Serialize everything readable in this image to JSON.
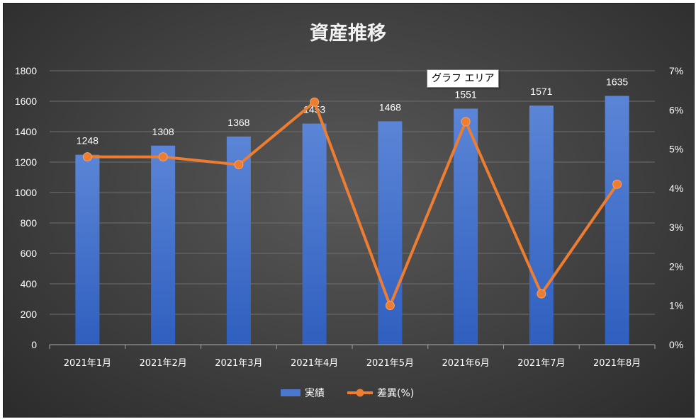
{
  "chart_data": {
    "type": "bar+line",
    "title": "資産推移",
    "categories": [
      "2021年1月",
      "2021年2月",
      "2021年3月",
      "2021年4月",
      "2021年5月",
      "2021年6月",
      "2021年7月",
      "2021年8月"
    ],
    "series": [
      {
        "name": "実績",
        "type": "bar",
        "axis": "left",
        "values": [
          1248,
          1308,
          1368,
          1453,
          1468,
          1551,
          1571,
          1635
        ],
        "color": "#4472c4"
      },
      {
        "name": "差異(%)",
        "type": "line",
        "axis": "right",
        "values": [
          4.8,
          4.8,
          4.6,
          6.2,
          1.0,
          5.7,
          1.3,
          4.1
        ],
        "color": "#ed7d31"
      }
    ],
    "y_left": {
      "min": 0,
      "max": 1800,
      "step": 200,
      "ticks": [
        "0",
        "200",
        "400",
        "600",
        "800",
        "1000",
        "1200",
        "1400",
        "1600",
        "1800"
      ]
    },
    "y_right": {
      "min": 0,
      "max": 7,
      "step": 1,
      "ticks": [
        "0%",
        "1%",
        "2%",
        "3%",
        "4%",
        "5%",
        "6%",
        "7%"
      ]
    },
    "gridlines": true,
    "legend_position": "bottom",
    "bar_data_labels": true,
    "tooltip": "グラフ エリア"
  }
}
